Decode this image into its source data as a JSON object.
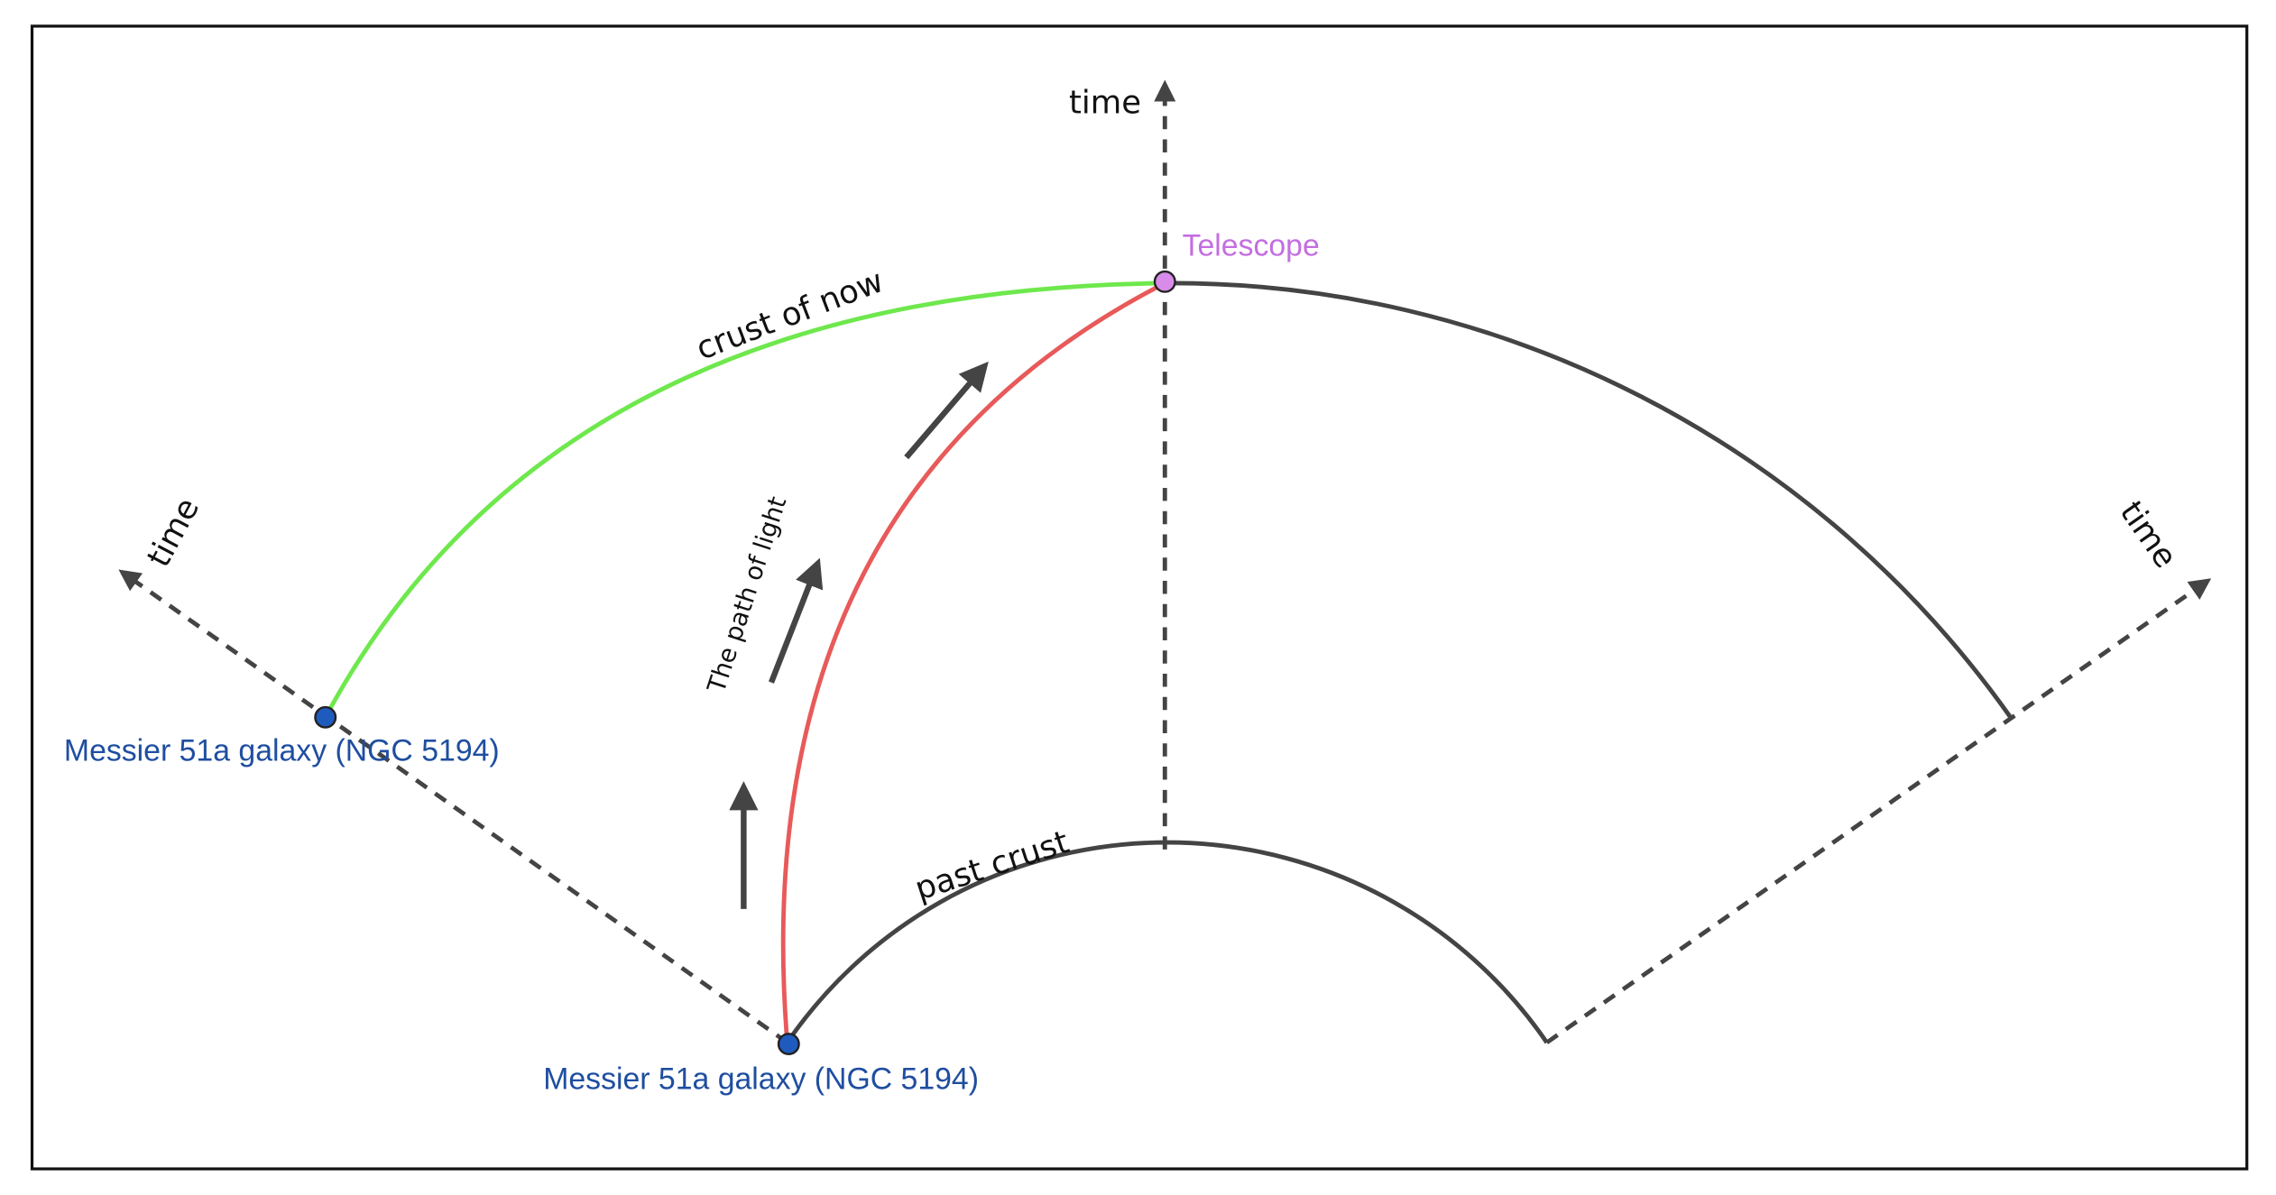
{
  "labels": {
    "time_top": "time",
    "time_left": "time",
    "time_right": "time",
    "telescope": "Telescope",
    "crust_of_now": "crust of now",
    "path_of_light": "The path of light",
    "past_crust": "past crust",
    "galaxy_upper": "Messier 51a galaxy (NGC 5194)",
    "galaxy_lower": "Messier 51a galaxy (NGC 5194)"
  }
}
